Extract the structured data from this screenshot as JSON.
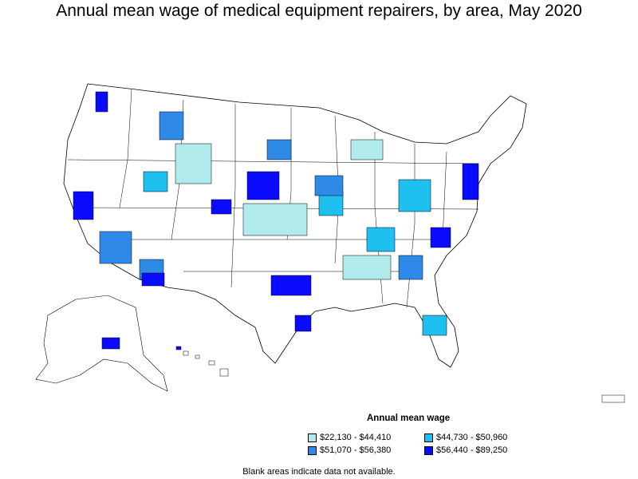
{
  "title": "Annual mean wage of medical equipment repairers, by area, May 2020",
  "legend": {
    "title": "Annual mean wage",
    "items": [
      {
        "label": "$22,130 - $44,410",
        "color": "#b2ebeb"
      },
      {
        "label": "$44,730 - $50,960",
        "color": "#1ec0f0"
      },
      {
        "label": "$51,070 - $56,380",
        "color": "#2e8ae6"
      },
      {
        "label": "$56,440 - $89,250",
        "color": "#0a0aff"
      }
    ]
  },
  "note": "Blank areas indicate data not available.",
  "colors": {
    "border": "#000000",
    "blank": "#ffffff"
  }
}
